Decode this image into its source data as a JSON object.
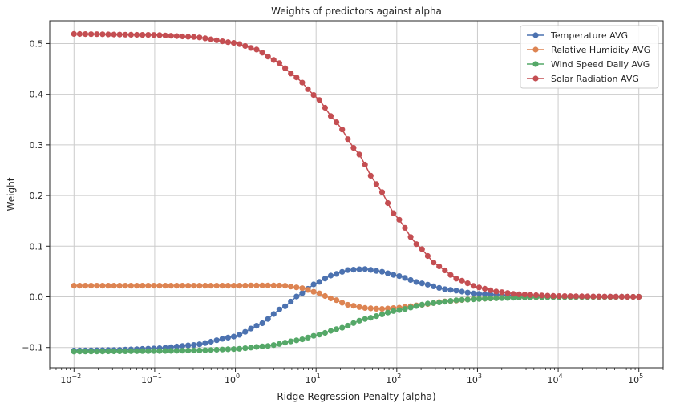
{
  "chart_data": {
    "type": "line",
    "title": "Weights of predictors against alpha",
    "xlabel": "Ridge Regression Penalty (alpha)",
    "ylabel": "Weight",
    "x_scale": "log",
    "xlim": [
      0.005,
      200000
    ],
    "ylim": [
      -0.14,
      0.545
    ],
    "grid": true,
    "legend_position": "top-right",
    "x_ticks": [
      {
        "base": "10",
        "exp": "−2"
      },
      {
        "base": "10",
        "exp": "−1"
      },
      {
        "base": "10",
        "exp": "0"
      },
      {
        "base": "10",
        "exp": "1"
      },
      {
        "base": "10",
        "exp": "2"
      },
      {
        "base": "10",
        "exp": "3"
      },
      {
        "base": "10",
        "exp": "4"
      },
      {
        "base": "10",
        "exp": "5"
      }
    ],
    "y_ticks": [
      "−0.1",
      "0.0",
      "0.1",
      "0.2",
      "0.3",
      "0.4",
      "0.5"
    ],
    "x_log10_range": [
      -2,
      5
    ],
    "points_per_series": 100,
    "series": [
      {
        "name": "Temperature AVG",
        "color": "#4c72b0",
        "anchors": [
          [
            -2,
            -0.106
          ],
          [
            -1.5,
            -0.105
          ],
          [
            -1,
            -0.102
          ],
          [
            -0.5,
            -0.095
          ],
          [
            0,
            -0.078
          ],
          [
            0.3,
            -0.055
          ],
          [
            0.6,
            -0.02
          ],
          [
            0.8,
            0.005
          ],
          [
            1,
            0.027
          ],
          [
            1.2,
            0.043
          ],
          [
            1.4,
            0.053
          ],
          [
            1.6,
            0.055
          ],
          [
            1.8,
            0.05
          ],
          [
            2,
            0.042
          ],
          [
            2.3,
            0.027
          ],
          [
            2.6,
            0.015
          ],
          [
            3,
            0.006
          ],
          [
            3.5,
            0.002
          ],
          [
            4,
            0.0005
          ],
          [
            5,
            0.0
          ]
        ]
      },
      {
        "name": "Relative Humidity AVG",
        "color": "#dd8452",
        "anchors": [
          [
            -2,
            0.022
          ],
          [
            0,
            0.022
          ],
          [
            0.4,
            0.0225
          ],
          [
            0.6,
            0.022
          ],
          [
            0.8,
            0.018
          ],
          [
            1,
            0.009
          ],
          [
            1.2,
            -0.004
          ],
          [
            1.4,
            -0.016
          ],
          [
            1.6,
            -0.022
          ],
          [
            1.8,
            -0.024
          ],
          [
            2,
            -0.022
          ],
          [
            2.3,
            -0.016
          ],
          [
            2.6,
            -0.009
          ],
          [
            3,
            -0.004
          ],
          [
            3.5,
            -0.001
          ],
          [
            4,
            -0.0003
          ],
          [
            5,
            0.0
          ]
        ]
      },
      {
        "name": "Wind Speed Daily AVG",
        "color": "#55a868",
        "anchors": [
          [
            -2,
            -0.108
          ],
          [
            -1,
            -0.107
          ],
          [
            -0.5,
            -0.106
          ],
          [
            0,
            -0.103
          ],
          [
            0.4,
            -0.097
          ],
          [
            0.8,
            -0.085
          ],
          [
            1,
            -0.076
          ],
          [
            1.3,
            -0.062
          ],
          [
            1.6,
            -0.044
          ],
          [
            2,
            -0.027
          ],
          [
            2.4,
            -0.013
          ],
          [
            2.8,
            -0.006
          ],
          [
            3.2,
            -0.003
          ],
          [
            3.6,
            -0.001
          ],
          [
            4,
            -0.0004
          ],
          [
            5,
            0.0
          ]
        ]
      },
      {
        "name": "Solar Radiation AVG",
        "color": "#c44e52",
        "anchors": [
          [
            -2,
            0.519
          ],
          [
            -1,
            0.517
          ],
          [
            -0.5,
            0.513
          ],
          [
            0,
            0.501
          ],
          [
            0.25,
            0.489
          ],
          [
            0.5,
            0.466
          ],
          [
            0.75,
            0.434
          ],
          [
            1,
            0.395
          ],
          [
            1.25,
            0.345
          ],
          [
            1.5,
            0.288
          ],
          [
            1.75,
            0.222
          ],
          [
            2,
            0.157
          ],
          [
            2.25,
            0.103
          ],
          [
            2.5,
            0.062
          ],
          [
            2.75,
            0.035
          ],
          [
            3,
            0.019
          ],
          [
            3.25,
            0.01
          ],
          [
            3.5,
            0.005
          ],
          [
            3.75,
            0.003
          ],
          [
            4,
            0.0015
          ],
          [
            4.5,
            0.0005
          ],
          [
            5,
            0.0
          ]
        ]
      }
    ]
  }
}
